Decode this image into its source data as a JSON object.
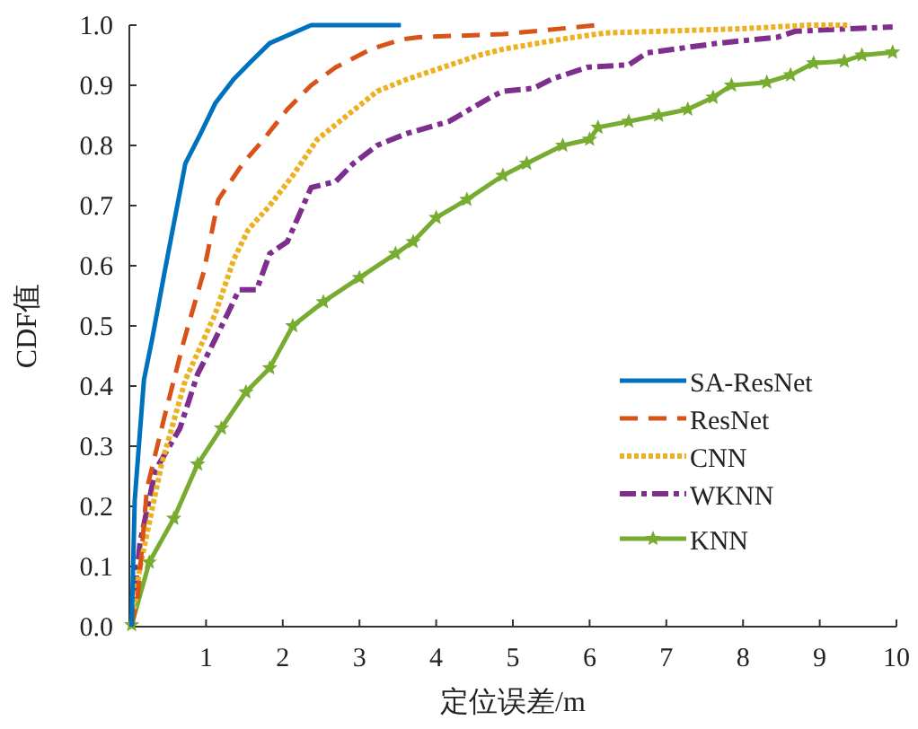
{
  "chart_data": {
    "type": "line",
    "xlabel": "定位误差/m",
    "ylabel": "CDF值",
    "xlim": [
      0,
      10
    ],
    "xticks": [
      1,
      2,
      3,
      4,
      5,
      6,
      7,
      8,
      9,
      10
    ],
    "ylim": [
      0,
      1
    ],
    "yticks": [
      {
        "value": 0,
        "label": "0.0"
      },
      {
        "value": 0.1,
        "label": "0.1"
      },
      {
        "value": 0.2,
        "label": "0.2"
      },
      {
        "value": 0.3,
        "label": "0.3"
      },
      {
        "value": 0.4,
        "label": "0.4"
      },
      {
        "value": 0.5,
        "label": "0.5"
      },
      {
        "value": 0.6,
        "label": "0.6"
      },
      {
        "value": 0.7,
        "label": "0.7"
      },
      {
        "value": 0.8,
        "label": "0.8"
      },
      {
        "value": 0.9,
        "label": "0.9"
      },
      {
        "value": 1,
        "label": "1.0"
      }
    ],
    "grid": false,
    "legend": "right",
    "series": [
      {
        "name": "SA-ResNet",
        "color": "#0072bd",
        "line_style": "solid",
        "marker": "none",
        "x": [
          0.03,
          0.07,
          0.19,
          0.3,
          0.46,
          0.58,
          0.73,
          0.93,
          1.12,
          1.36,
          1.59,
          1.83,
          2.37,
          2.92,
          3.54
        ],
        "values": [
          0.0,
          0.21,
          0.41,
          0.48,
          0.59,
          0.67,
          0.77,
          0.82,
          0.87,
          0.91,
          0.94,
          0.97,
          1.0,
          1.0,
          1.0
        ]
      },
      {
        "name": "ResNet",
        "color": "#d95319",
        "line_style": "dashed",
        "marker": "none",
        "x": [
          0.03,
          0.11,
          0.23,
          0.46,
          0.7,
          0.97,
          1.16,
          1.48,
          1.75,
          2.06,
          2.37,
          2.69,
          3.15,
          3.54,
          3.77,
          4.87,
          6.1
        ],
        "values": [
          0.0,
          0.05,
          0.23,
          0.35,
          0.47,
          0.59,
          0.71,
          0.77,
          0.81,
          0.86,
          0.9,
          0.93,
          0.96,
          0.976,
          0.98,
          0.985,
          1.0
        ]
      },
      {
        "name": "CNN",
        "color": "#edb120",
        "line_style": "dotted",
        "marker": "none",
        "x": [
          0.03,
          0.14,
          0.42,
          0.73,
          1.12,
          1.36,
          1.55,
          1.83,
          2.13,
          2.45,
          2.84,
          3.23,
          3.62,
          4.09,
          4.56,
          4.87,
          5.65,
          6.2,
          7.99,
          8.85,
          9.4
        ],
        "values": [
          0.005,
          0.1,
          0.27,
          0.41,
          0.52,
          0.61,
          0.66,
          0.7,
          0.75,
          0.81,
          0.85,
          0.89,
          0.91,
          0.93,
          0.95,
          0.96,
          0.977,
          0.987,
          0.994,
          1.0,
          1.0
        ]
      },
      {
        "name": "WKNN",
        "color": "#7e2f8e",
        "line_style": "dashdot",
        "marker": "none",
        "x": [
          0.03,
          0.14,
          0.34,
          0.66,
          0.89,
          1.05,
          1.28,
          1.43,
          1.66,
          1.83,
          2.06,
          2.37,
          2.69,
          2.92,
          3.23,
          3.62,
          4.17,
          4.71,
          4.87,
          5.27,
          5.5,
          5.97,
          6.51,
          6.75,
          7.68,
          8.45,
          8.69,
          9.95
        ],
        "values": [
          0.005,
          0.14,
          0.26,
          0.33,
          0.42,
          0.46,
          0.52,
          0.56,
          0.56,
          0.62,
          0.64,
          0.73,
          0.74,
          0.77,
          0.8,
          0.82,
          0.84,
          0.88,
          0.89,
          0.895,
          0.91,
          0.93,
          0.934,
          0.954,
          0.97,
          0.98,
          0.99,
          0.997
        ]
      },
      {
        "name": "KNN",
        "color": "#77ac30",
        "line_style": "solid",
        "marker": "star",
        "x": [
          0.03,
          0.26,
          0.58,
          0.89,
          1.2,
          1.52,
          1.83,
          2.13,
          2.53,
          3.0,
          3.47,
          3.7,
          4.0,
          4.4,
          4.87,
          5.18,
          5.65,
          6.0,
          6.11,
          6.51,
          6.9,
          7.28,
          7.61,
          7.85,
          8.31,
          8.62,
          8.92,
          9.32,
          9.55,
          9.95
        ],
        "values": [
          0.003,
          0.107,
          0.18,
          0.27,
          0.33,
          0.39,
          0.43,
          0.5,
          0.54,
          0.58,
          0.62,
          0.64,
          0.68,
          0.71,
          0.75,
          0.77,
          0.8,
          0.81,
          0.83,
          0.84,
          0.85,
          0.86,
          0.88,
          0.9,
          0.905,
          0.917,
          0.937,
          0.94,
          0.95,
          0.955
        ]
      }
    ]
  }
}
